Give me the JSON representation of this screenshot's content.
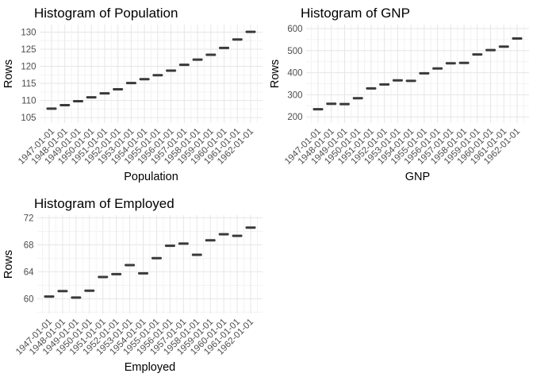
{
  "figure": {
    "background": "#ffffff",
    "layout": "2x2 grid, bottom-right cell empty"
  },
  "colors": {
    "mark": "#3a3a3a",
    "grid_major": "#e6e6e6",
    "grid_minor": "#f3f3f3",
    "tick_label": "#4d4d4d",
    "title_text": "#000000"
  },
  "chart_data": [
    {
      "type": "scatter",
      "mark_shape": "horizontal-dash",
      "title": "Histogram of Population",
      "xlabel": "Population",
      "ylabel": "Rows",
      "legend": "none",
      "grid": "major+minor",
      "categories": [
        "1947-01-01",
        "1948-01-01",
        "1949-01-01",
        "1950-01-01",
        "1951-01-01",
        "1952-01-01",
        "1953-01-01",
        "1954-01-01",
        "1955-01-01",
        "1956-01-01",
        "1957-01-01",
        "1958-01-01",
        "1959-01-01",
        "1960-01-01",
        "1961-01-01",
        "1962-01-01"
      ],
      "values": [
        107.608,
        108.632,
        109.773,
        110.929,
        112.075,
        113.27,
        115.094,
        116.219,
        117.388,
        118.734,
        120.445,
        121.95,
        123.366,
        125.368,
        127.852,
        130.081
      ],
      "yticks": [
        105,
        110,
        115,
        120,
        125,
        130
      ],
      "ylim": [
        103.4,
        132.2
      ]
    },
    {
      "type": "scatter",
      "mark_shape": "horizontal-dash",
      "title": "Histogram of GNP",
      "xlabel": "GNP",
      "ylabel": "Rows",
      "legend": "none",
      "grid": "major+minor",
      "categories": [
        "1947-01-01",
        "1948-01-01",
        "1949-01-01",
        "1950-01-01",
        "1951-01-01",
        "1952-01-01",
        "1953-01-01",
        "1954-01-01",
        "1955-01-01",
        "1956-01-01",
        "1957-01-01",
        "1958-01-01",
        "1959-01-01",
        "1960-01-01",
        "1961-01-01",
        "1962-01-01"
      ],
      "values": [
        234.289,
        259.426,
        258.054,
        284.599,
        328.975,
        346.999,
        365.385,
        363.112,
        397.469,
        419.18,
        442.769,
        444.546,
        482.704,
        502.601,
        518.173,
        554.894
      ],
      "yticks": [
        200,
        300,
        400,
        500,
        600
      ],
      "ylim": [
        172,
        618
      ]
    },
    {
      "type": "scatter",
      "mark_shape": "horizontal-dash",
      "title": "Histogram of Employed",
      "xlabel": "Employed",
      "ylabel": "Rows",
      "legend": "none",
      "grid": "major+minor",
      "categories": [
        "1947-01-01",
        "1948-01-01",
        "1949-01-01",
        "1950-01-01",
        "1951-01-01",
        "1952-01-01",
        "1953-01-01",
        "1954-01-01",
        "1955-01-01",
        "1956-01-01",
        "1957-01-01",
        "1958-01-01",
        "1959-01-01",
        "1960-01-01",
        "1961-01-01",
        "1962-01-01"
      ],
      "values": [
        60.323,
        61.122,
        60.171,
        61.187,
        63.221,
        63.639,
        64.989,
        63.761,
        66.019,
        67.857,
        68.169,
        66.513,
        68.655,
        69.564,
        69.331,
        70.551
      ],
      "yticks": [
        60,
        64,
        68,
        72
      ],
      "ylim": [
        57.8,
        72.4
      ]
    }
  ]
}
